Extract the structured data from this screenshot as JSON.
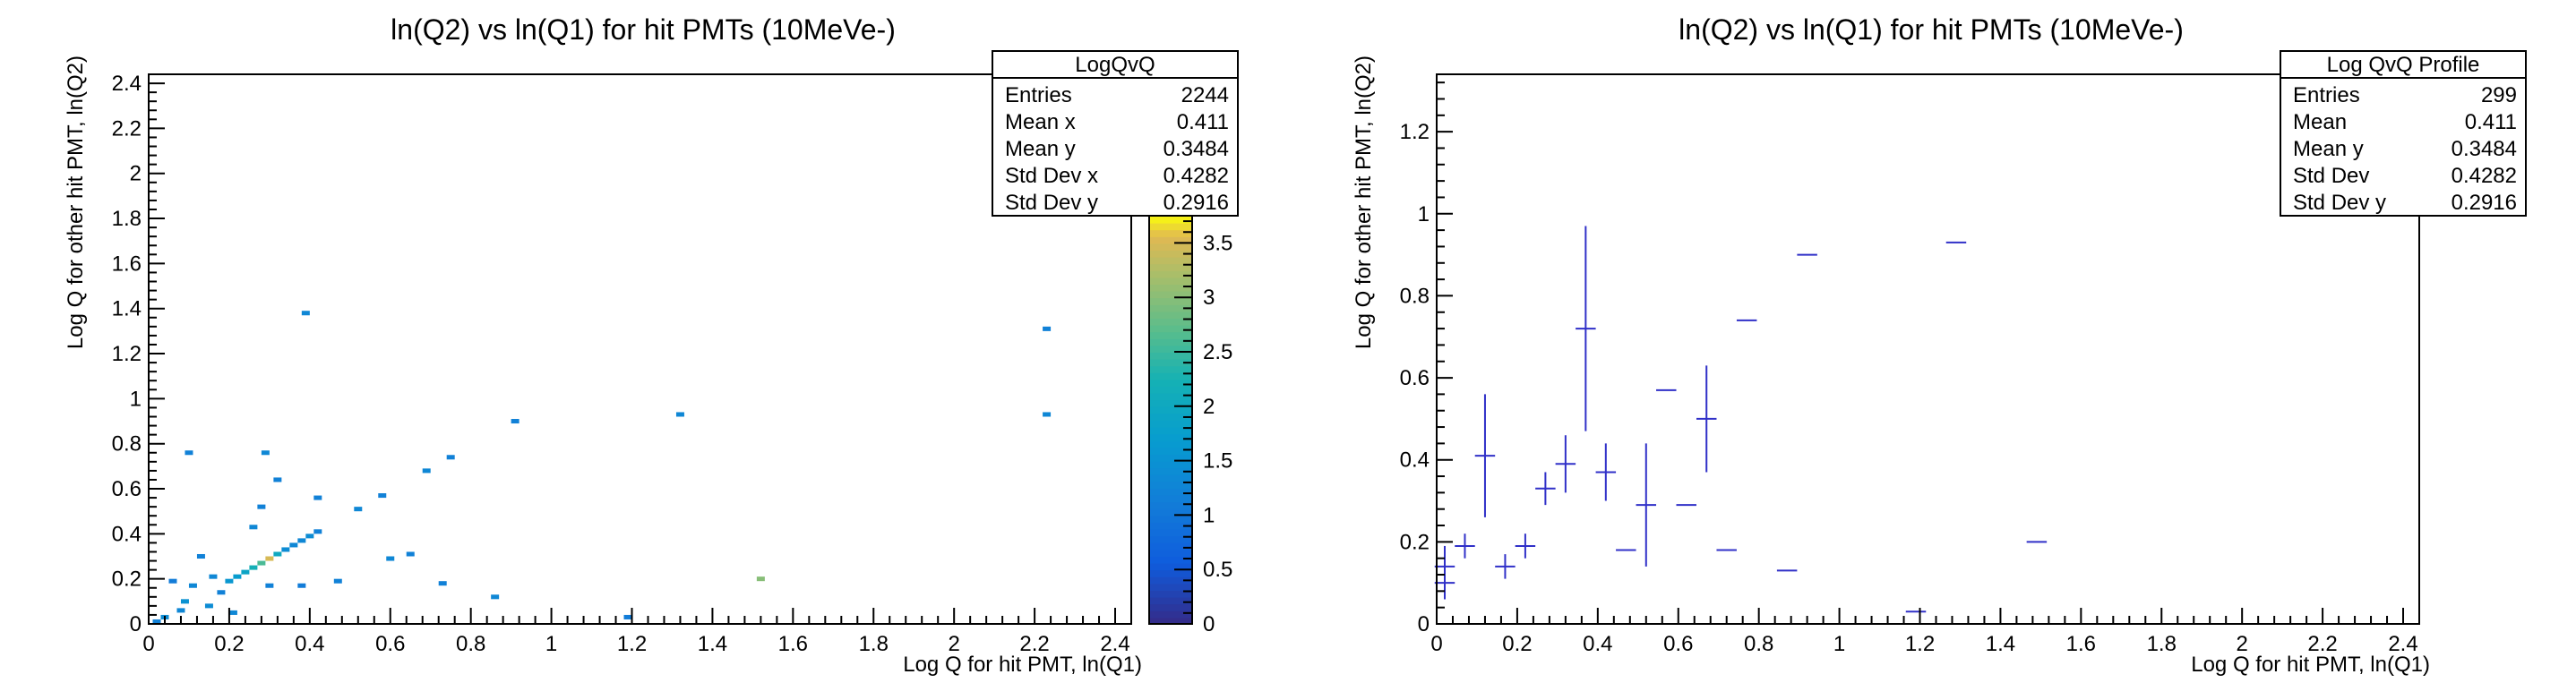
{
  "chart_data": [
    {
      "type": "heatmap",
      "title": "ln(Q2) vs ln(Q1) for hit PMTs (10MeVe-)",
      "xlabel": "Log Q for hit PMT, ln(Q1)",
      "ylabel": "Log Q for other hit PMT, ln(Q2)",
      "xlim": [
        0,
        2.44
      ],
      "ylim": [
        0,
        2.44
      ],
      "x_ticks": [
        "0",
        "0.2",
        "0.4",
        "0.6",
        "0.8",
        "1",
        "1.2",
        "1.4",
        "1.6",
        "1.8",
        "2",
        "2.2",
        "2.4"
      ],
      "y_ticks": [
        "0",
        "0.2",
        "0.4",
        "0.6",
        "0.8",
        "1",
        "1.2",
        "1.4",
        "1.6",
        "1.8",
        "2",
        "2.2",
        "2.4"
      ],
      "colorbar": {
        "range": [
          0,
          3.75
        ],
        "ticks": [
          "0",
          "0.5",
          "1",
          "1.5",
          "2",
          "2.5",
          "3",
          "3.5"
        ]
      },
      "stats": {
        "title": "LogQvQ",
        "rows": [
          {
            "label": "Entries",
            "value": "2244"
          },
          {
            "label": "Mean x",
            "value": "0.411"
          },
          {
            "label": "Mean y",
            "value": "0.3484"
          },
          {
            "label": "Std Dev x",
            "value": "0.4282"
          },
          {
            "label": "Std Dev y",
            "value": "0.2916"
          }
        ]
      },
      "cells": [
        {
          "x": 0.01,
          "y": 0.01,
          "z": 1.2
        },
        {
          "x": 0.03,
          "y": 0.03,
          "z": 1.4
        },
        {
          "x": 0.05,
          "y": 0.19,
          "z": 1.1
        },
        {
          "x": 0.07,
          "y": 0.06,
          "z": 1.3
        },
        {
          "x": 0.09,
          "y": 0.76,
          "z": 1.2
        },
        {
          "x": 0.08,
          "y": 0.1,
          "z": 1.5
        },
        {
          "x": 0.1,
          "y": 0.17,
          "z": 1.3
        },
        {
          "x": 0.12,
          "y": 0.3,
          "z": 1.2
        },
        {
          "x": 0.14,
          "y": 0.08,
          "z": 1.4
        },
        {
          "x": 0.15,
          "y": 0.21,
          "z": 1.3
        },
        {
          "x": 0.17,
          "y": 0.14,
          "z": 1.2
        },
        {
          "x": 0.19,
          "y": 0.19,
          "z": 1.6
        },
        {
          "x": 0.2,
          "y": 0.05,
          "z": 1.3
        },
        {
          "x": 0.21,
          "y": 0.21,
          "z": 1.7
        },
        {
          "x": 0.23,
          "y": 0.23,
          "z": 1.9
        },
        {
          "x": 0.25,
          "y": 0.25,
          "z": 2.2
        },
        {
          "x": 0.25,
          "y": 0.43,
          "z": 1.3
        },
        {
          "x": 0.27,
          "y": 0.27,
          "z": 2.6
        },
        {
          "x": 0.27,
          "y": 0.52,
          "z": 1.2
        },
        {
          "x": 0.28,
          "y": 0.76,
          "z": 1.3
        },
        {
          "x": 0.29,
          "y": 0.29,
          "z": 3.5
        },
        {
          "x": 0.29,
          "y": 0.17,
          "z": 1.2
        },
        {
          "x": 0.31,
          "y": 0.31,
          "z": 2.0
        },
        {
          "x": 0.31,
          "y": 0.64,
          "z": 1.2
        },
        {
          "x": 0.33,
          "y": 0.33,
          "z": 1.4
        },
        {
          "x": 0.35,
          "y": 0.35,
          "z": 1.3
        },
        {
          "x": 0.37,
          "y": 0.37,
          "z": 1.3
        },
        {
          "x": 0.37,
          "y": 0.17,
          "z": 1.1
        },
        {
          "x": 0.38,
          "y": 1.38,
          "z": 1.3
        },
        {
          "x": 0.39,
          "y": 0.39,
          "z": 1.4
        },
        {
          "x": 0.41,
          "y": 0.41,
          "z": 1.2
        },
        {
          "x": 0.41,
          "y": 0.56,
          "z": 1.2
        },
        {
          "x": 0.46,
          "y": 0.19,
          "z": 1.2
        },
        {
          "x": 0.51,
          "y": 0.51,
          "z": 1.3
        },
        {
          "x": 0.57,
          "y": 0.57,
          "z": 1.2
        },
        {
          "x": 0.59,
          "y": 0.29,
          "z": 1.3
        },
        {
          "x": 0.64,
          "y": 0.31,
          "z": 1.2
        },
        {
          "x": 0.68,
          "y": 0.68,
          "z": 1.3
        },
        {
          "x": 0.72,
          "y": 0.18,
          "z": 1.2
        },
        {
          "x": 0.74,
          "y": 0.74,
          "z": 1.2
        },
        {
          "x": 0.85,
          "y": 0.12,
          "z": 1.3
        },
        {
          "x": 0.9,
          "y": 0.9,
          "z": 1.2
        },
        {
          "x": 1.18,
          "y": 0.03,
          "z": 1.1
        },
        {
          "x": 1.31,
          "y": 0.93,
          "z": 1.3
        },
        {
          "x": 1.51,
          "y": 0.2,
          "z": 3.0
        },
        {
          "x": 2.22,
          "y": 1.31,
          "z": 1.2
        },
        {
          "x": 2.22,
          "y": 0.93,
          "z": 1.3
        }
      ]
    },
    {
      "type": "scatter",
      "title": "ln(Q2) vs ln(Q1) for hit PMTs (10MeVe-)",
      "xlabel": "Log Q for hit PMT, ln(Q1)",
      "ylabel": "Log Q for other hit PMT, ln(Q2)",
      "xlim": [
        0,
        2.44
      ],
      "ylim": [
        0,
        1.34
      ],
      "x_ticks": [
        "0",
        "0.2",
        "0.4",
        "0.6",
        "0.8",
        "1",
        "1.2",
        "1.4",
        "1.6",
        "1.8",
        "2",
        "2.2",
        "2.4"
      ],
      "y_ticks": [
        "0",
        "0.2",
        "0.4",
        "0.6",
        "0.8",
        "1",
        "1.2"
      ],
      "stats": {
        "title": "Log QvQ Profile",
        "rows": [
          {
            "label": "Entries",
            "value": "299"
          },
          {
            "label": "Mean",
            "value": "0.411"
          },
          {
            "label": "Mean y",
            "value": "0.3484"
          },
          {
            "label": "Std Dev",
            "value": "0.4282"
          },
          {
            "label": "Std Dev y",
            "value": "0.2916"
          }
        ]
      },
      "points": [
        {
          "x": 0.02,
          "y": 0.1,
          "err": 0.04
        },
        {
          "x": 0.02,
          "y": 0.14,
          "err": 0.05
        },
        {
          "x": 0.07,
          "y": 0.19,
          "err": 0.03
        },
        {
          "x": 0.12,
          "y": 0.41,
          "err": 0.15
        },
        {
          "x": 0.17,
          "y": 0.14,
          "err": 0.03
        },
        {
          "x": 0.22,
          "y": 0.19,
          "err": 0.03
        },
        {
          "x": 0.27,
          "y": 0.33,
          "err": 0.04
        },
        {
          "x": 0.32,
          "y": 0.39,
          "err": 0.07
        },
        {
          "x": 0.37,
          "y": 0.72,
          "err": 0.25
        },
        {
          "x": 0.42,
          "y": 0.37,
          "err": 0.07
        },
        {
          "x": 0.47,
          "y": 0.18,
          "err": 0
        },
        {
          "x": 0.52,
          "y": 0.29,
          "err": 0.15
        },
        {
          "x": 0.57,
          "y": 0.57,
          "err": 0
        },
        {
          "x": 0.62,
          "y": 0.29,
          "err": 0
        },
        {
          "x": 0.67,
          "y": 0.5,
          "err": 0.13
        },
        {
          "x": 0.72,
          "y": 0.18,
          "err": 0
        },
        {
          "x": 0.77,
          "y": 0.74,
          "err": 0
        },
        {
          "x": 0.87,
          "y": 0.13,
          "err": 0
        },
        {
          "x": 0.92,
          "y": 0.9,
          "err": 0
        },
        {
          "x": 1.19,
          "y": 0.03,
          "err": 0
        },
        {
          "x": 1.29,
          "y": 0.93,
          "err": 0
        },
        {
          "x": 1.49,
          "y": 0.2,
          "err": 0
        }
      ]
    }
  ]
}
